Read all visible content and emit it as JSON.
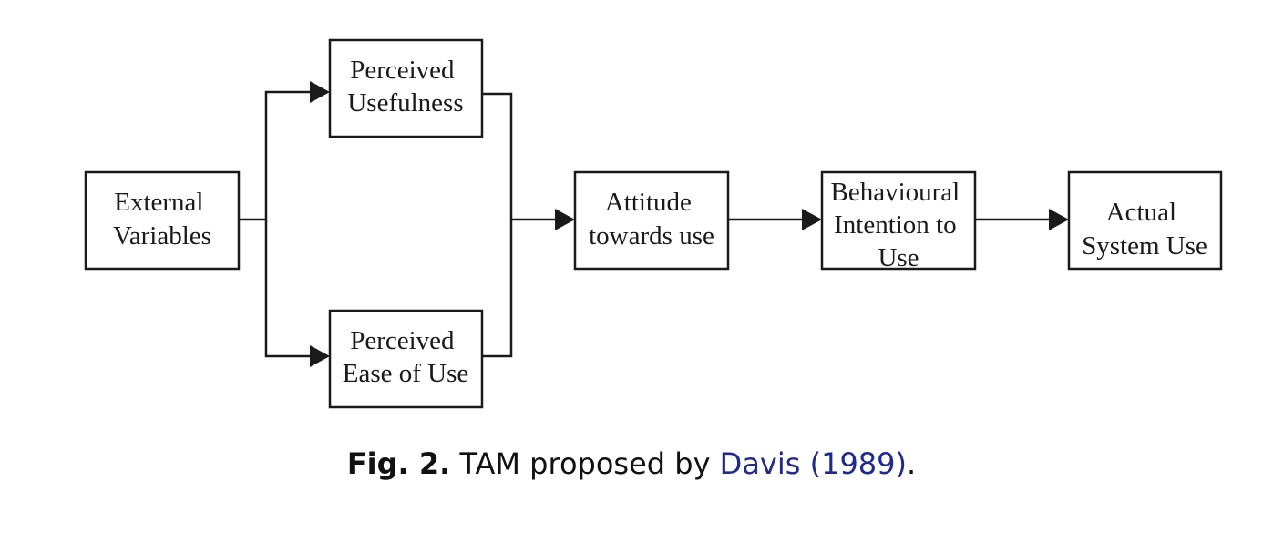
{
  "diagram": {
    "nodes": {
      "external_variables": [
        "External",
        "Variables"
      ],
      "perceived_usefulness": [
        "Perceived",
        "Usefulness"
      ],
      "perceived_ease_of_use": [
        "Perceived",
        "Ease of Use"
      ],
      "attitude_towards_use": [
        "Attitude",
        "towards use"
      ],
      "behavioural_intention": [
        "Behavioural",
        "Intention to",
        "Use"
      ],
      "actual_system_use": [
        "Actual",
        "System Use"
      ]
    },
    "edges": [
      [
        "external_variables",
        "perceived_usefulness"
      ],
      [
        "external_variables",
        "perceived_ease_of_use"
      ],
      [
        "perceived_usefulness",
        "attitude_towards_use"
      ],
      [
        "perceived_ease_of_use",
        "attitude_towards_use"
      ],
      [
        "attitude_towards_use",
        "behavioural_intention"
      ],
      [
        "behavioural_intention",
        "actual_system_use"
      ]
    ]
  },
  "caption": {
    "label": "Fig. 2.",
    "text_before": " TAM proposed by ",
    "citation": "Davis (1989)",
    "text_after": "."
  }
}
